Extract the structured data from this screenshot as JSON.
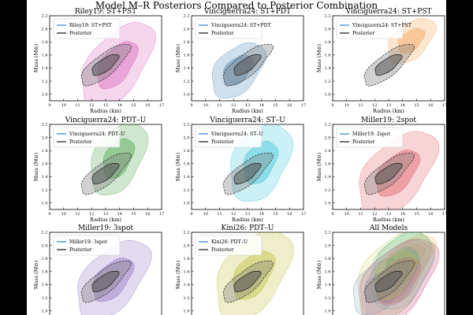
{
  "figure": {
    "title": "Model M–R Posteriors Compared to Posterior Combination",
    "xlabel": "Radius (km)",
    "ylabel": "Mass (M⊙)"
  },
  "posterior": {
    "label": "Posterior",
    "color": "#333333"
  },
  "chart_data": [
    {
      "type": "contour",
      "title": "Riley19: ST+PST",
      "legend": [
        "Riley19: ST+PST",
        "Posterior"
      ],
      "color": "#d65cb8",
      "xlabel": "Radius (km)",
      "ylabel": "Mass (M⊙)",
      "xlim": [
        9,
        17
      ],
      "ylim": [
        0.9,
        2.2
      ],
      "xticks": [
        9,
        10,
        11,
        12,
        13,
        14,
        15,
        16,
        17
      ],
      "yticks": [
        1.0,
        1.2,
        1.4,
        1.6,
        1.8,
        2.0,
        2.2
      ],
      "model_contour": {
        "center": [
          13.8,
          1.45
        ],
        "x_halfwidth": 2.6,
        "y_halfwidth": 0.55,
        "spread": 0.14
      }
    },
    {
      "type": "contour",
      "title": "Vinciguerra24: ST+PDT",
      "legend": [
        "Vinciguerra24: ST+PDT",
        "Posterior"
      ],
      "color": "#3f7fb5",
      "xlabel": "Radius (km)",
      "ylabel": "Mass (M⊙)",
      "xlim": [
        9,
        17
      ],
      "ylim": [
        0.9,
        2.2
      ],
      "xticks": [
        9,
        10,
        11,
        12,
        13,
        14,
        15,
        16,
        17
      ],
      "yticks": [
        1.0,
        1.2,
        1.4,
        1.6,
        1.8,
        2.0,
        2.2
      ],
      "model_contour": {
        "center": [
          12.3,
          1.37
        ],
        "x_halfwidth": 1.9,
        "y_halfwidth": 0.38,
        "spread": 0.1
      }
    },
    {
      "type": "contour",
      "title": "Vinciguerra24: ST+PST",
      "legend": [
        "Vinciguerra24: ST+PST",
        "Posterior"
      ],
      "color": "#f59a45",
      "xlabel": "Radius (km)",
      "ylabel": "Mass (M⊙)",
      "xlim": [
        9,
        17
      ],
      "ylim": [
        0.9,
        2.2
      ],
      "xticks": [
        9,
        10,
        11,
        12,
        13,
        14,
        15,
        16,
        17
      ],
      "yticks": [
        1.0,
        1.2,
        1.4,
        1.6,
        1.8,
        2.0,
        2.2
      ],
      "model_contour": {
        "center": [
          14.6,
          1.82
        ],
        "x_halfwidth": 1.7,
        "y_halfwidth": 0.3,
        "spread": 0.1
      }
    },
    {
      "type": "contour",
      "title": "Vinciguerra24: PDT–U",
      "legend": [
        "Vinciguerra24: PDT–U",
        "Posterior"
      ],
      "color": "#3f9e3f",
      "xlabel": "Radius (km)",
      "ylabel": "Mass (M⊙)",
      "xlim": [
        9,
        17
      ],
      "ylim": [
        0.9,
        2.2
      ],
      "xticks": [
        9,
        10,
        11,
        12,
        13,
        14,
        15,
        16,
        17
      ],
      "yticks": [
        1.0,
        1.2,
        1.4,
        1.6,
        1.8,
        2.0,
        2.2
      ],
      "model_contour": {
        "center": [
          13.9,
          1.68
        ],
        "x_halfwidth": 2.0,
        "y_halfwidth": 0.5,
        "spread": 0.12
      }
    },
    {
      "type": "contour",
      "title": "Vinciguerra24: ST–U",
      "legend": [
        "Vinciguerra24: ST–U",
        "Posterior"
      ],
      "color": "#2ec4d6",
      "xlabel": "Radius (km)",
      "ylabel": "Mass (M⊙)",
      "xlim": [
        9,
        17
      ],
      "ylim": [
        0.9,
        2.2
      ],
      "xticks": [
        9,
        10,
        11,
        12,
        13,
        14,
        15,
        16,
        17
      ],
      "yticks": [
        1.0,
        1.2,
        1.4,
        1.6,
        1.8,
        2.0,
        2.2
      ],
      "model_contour": {
        "center": [
          13.9,
          1.62
        ],
        "x_halfwidth": 2.2,
        "y_halfwidth": 0.55,
        "spread": 0.1
      }
    },
    {
      "type": "contour",
      "title": "Miller19: 2spot",
      "legend": [
        "Miller19: 2spot",
        "Posterior"
      ],
      "color": "#e0555a",
      "xlabel": "Radius (km)",
      "ylabel": "Mass (M⊙)",
      "xlim": [
        9,
        17
      ],
      "ylim": [
        0.9,
        2.2
      ],
      "xticks": [
        9,
        10,
        11,
        12,
        13,
        14,
        15,
        16,
        17
      ],
      "yticks": [
        1.0,
        1.2,
        1.4,
        1.6,
        1.8,
        2.0,
        2.2
      ],
      "model_contour": {
        "center": [
          13.6,
          1.46
        ],
        "x_halfwidth": 2.8,
        "y_halfwidth": 0.55,
        "spread": 0.12
      }
    },
    {
      "type": "contour",
      "title": "Miller19: 3spot",
      "legend": [
        "Miller19: 3spot",
        "Posterior"
      ],
      "color": "#8c6bbf",
      "xlabel": "Radius (km)",
      "ylabel": "Mass (M⊙)",
      "xlim": [
        9,
        17
      ],
      "ylim": [
        0.9,
        2.2
      ],
      "xticks": [
        9,
        10,
        11,
        12,
        13,
        14,
        15,
        16,
        17
      ],
      "yticks": [
        1.0,
        1.2,
        1.4,
        1.6,
        1.8,
        2.0,
        2.2
      ],
      "model_contour": {
        "center": [
          13.5,
          1.48
        ],
        "x_halfwidth": 2.6,
        "y_halfwidth": 0.52,
        "spread": 0.12
      }
    },
    {
      "type": "contour",
      "title": "Kini26: PDT–U",
      "legend": [
        "Kini26: PDT–U",
        "Posterior"
      ],
      "color": "#bcbc2e",
      "xlabel": "Radius (km)",
      "ylabel": "Mass (M⊙)",
      "xlim": [
        9,
        17
      ],
      "ylim": [
        0.9,
        2.2
      ],
      "xticks": [
        9,
        10,
        11,
        12,
        13,
        14,
        15,
        16,
        17
      ],
      "yticks": [
        1.0,
        1.2,
        1.4,
        1.6,
        1.8,
        2.0,
        2.2
      ],
      "model_contour": {
        "center": [
          13.4,
          1.55
        ],
        "x_halfwidth": 2.7,
        "y_halfwidth": 0.6,
        "spread": 0.12
      }
    },
    {
      "type": "contour",
      "title": "All Models",
      "legend": [],
      "color": "#999999",
      "xlabel": "Radius (km)",
      "ylabel": "Mass (M⊙)",
      "xlim": [
        9,
        17
      ],
      "ylim": [
        0.9,
        2.2
      ],
      "xticks": [
        9,
        10,
        11,
        12,
        13,
        14,
        15,
        16,
        17
      ],
      "yticks": [
        1.0,
        1.2,
        1.4,
        1.6,
        1.8,
        2.0,
        2.2
      ],
      "model_contour": null
    }
  ]
}
